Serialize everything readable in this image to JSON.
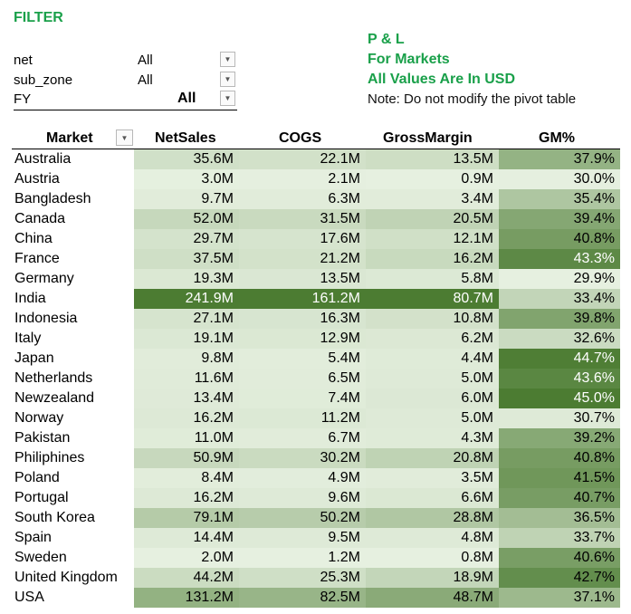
{
  "filter": {
    "title": "FILTER",
    "fields": [
      {
        "name": "net",
        "value": "All"
      },
      {
        "name": "sub_zone",
        "value": "All"
      },
      {
        "name": "FY",
        "value": "All"
      }
    ],
    "dropdown_icon": "triangle-down-icon"
  },
  "report": {
    "title_line1": "P & L",
    "title_line2": "For Markets",
    "title_line3": "All Values Are In USD",
    "note": "Note: Do not modify the pivot table",
    "accent_color": "#1aa04a"
  },
  "table": {
    "headers": [
      "Market",
      "NetSales",
      "COGS",
      "GrossMargin",
      "GM%"
    ],
    "rows": [
      {
        "market": "Australia",
        "netsales": "35.6M",
        "cogs": "22.1M",
        "gm": "13.5M",
        "gmpct": "37.9%"
      },
      {
        "market": "Austria",
        "netsales": "3.0M",
        "cogs": "2.1M",
        "gm": "0.9M",
        "gmpct": "30.0%"
      },
      {
        "market": "Bangladesh",
        "netsales": "9.7M",
        "cogs": "6.3M",
        "gm": "3.4M",
        "gmpct": "35.4%"
      },
      {
        "market": "Canada",
        "netsales": "52.0M",
        "cogs": "31.5M",
        "gm": "20.5M",
        "gmpct": "39.4%"
      },
      {
        "market": "China",
        "netsales": "29.7M",
        "cogs": "17.6M",
        "gm": "12.1M",
        "gmpct": "40.8%"
      },
      {
        "market": "France",
        "netsales": "37.5M",
        "cogs": "21.2M",
        "gm": "16.2M",
        "gmpct": "43.3%"
      },
      {
        "market": "Germany",
        "netsales": "19.3M",
        "cogs": "13.5M",
        "gm": "5.8M",
        "gmpct": "29.9%"
      },
      {
        "market": "India",
        "netsales": "241.9M",
        "cogs": "161.2M",
        "gm": "80.7M",
        "gmpct": "33.4%"
      },
      {
        "market": "Indonesia",
        "netsales": "27.1M",
        "cogs": "16.3M",
        "gm": "10.8M",
        "gmpct": "39.8%"
      },
      {
        "market": "Italy",
        "netsales": "19.1M",
        "cogs": "12.9M",
        "gm": "6.2M",
        "gmpct": "32.6%"
      },
      {
        "market": "Japan",
        "netsales": "9.8M",
        "cogs": "5.4M",
        "gm": "4.4M",
        "gmpct": "44.7%"
      },
      {
        "market": "Netherlands",
        "netsales": "11.6M",
        "cogs": "6.5M",
        "gm": "5.0M",
        "gmpct": "43.6%"
      },
      {
        "market": "Newzealand",
        "netsales": "13.4M",
        "cogs": "7.4M",
        "gm": "6.0M",
        "gmpct": "45.0%"
      },
      {
        "market": "Norway",
        "netsales": "16.2M",
        "cogs": "11.2M",
        "gm": "5.0M",
        "gmpct": "30.7%"
      },
      {
        "market": "Pakistan",
        "netsales": "11.0M",
        "cogs": "6.7M",
        "gm": "4.3M",
        "gmpct": "39.2%"
      },
      {
        "market": "Philiphines",
        "netsales": "50.9M",
        "cogs": "30.2M",
        "gm": "20.8M",
        "gmpct": "40.8%"
      },
      {
        "market": "Poland",
        "netsales": "8.4M",
        "cogs": "4.9M",
        "gm": "3.5M",
        "gmpct": "41.5%"
      },
      {
        "market": "Portugal",
        "netsales": "16.2M",
        "cogs": "9.6M",
        "gm": "6.6M",
        "gmpct": "40.7%"
      },
      {
        "market": "South Korea",
        "netsales": "79.1M",
        "cogs": "50.2M",
        "gm": "28.8M",
        "gmpct": "36.5%"
      },
      {
        "market": "Spain",
        "netsales": "14.4M",
        "cogs": "9.5M",
        "gm": "4.8M",
        "gmpct": "33.7%"
      },
      {
        "market": "Sweden",
        "netsales": "2.0M",
        "cogs": "1.2M",
        "gm": "0.8M",
        "gmpct": "40.6%"
      },
      {
        "market": "United Kingdom",
        "netsales": "44.2M",
        "cogs": "25.3M",
        "gm": "18.9M",
        "gmpct": "42.7%"
      },
      {
        "market": "USA",
        "netsales": "131.2M",
        "cogs": "82.5M",
        "gm": "48.7M",
        "gmpct": "37.1%"
      }
    ],
    "heat_colors": {
      "light": "#e6f0e0",
      "dark": "#4c7c32"
    }
  }
}
